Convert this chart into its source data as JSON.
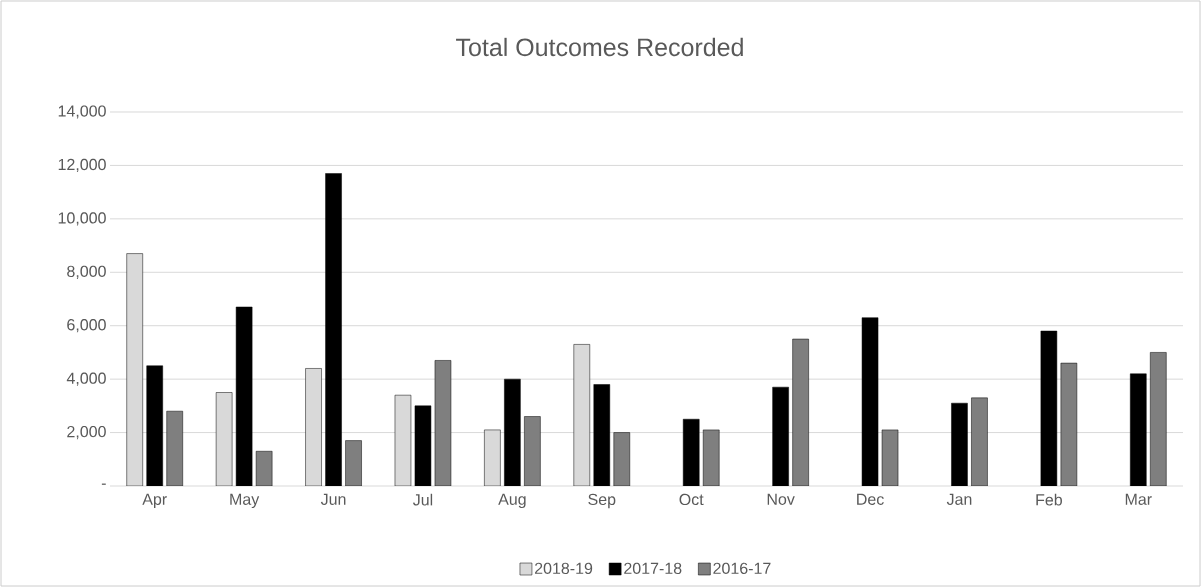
{
  "chart_data": {
    "type": "bar",
    "title": "Total Outcomes Recorded",
    "categories": [
      "Apr",
      "May",
      "Jun",
      "Jul",
      "Aug",
      "Sep",
      "Oct",
      "Nov",
      "Dec",
      "Jan",
      "Feb",
      "Mar"
    ],
    "series": [
      {
        "name": "2018-19",
        "color": "#d9d9d9",
        "values": [
          8700,
          3500,
          4400,
          3400,
          2100,
          5300,
          null,
          null,
          null,
          null,
          null,
          null
        ]
      },
      {
        "name": "2017-18",
        "color": "#000000",
        "values": [
          4500,
          6700,
          11700,
          3000,
          4000,
          3800,
          2500,
          3700,
          6300,
          3100,
          5800,
          4200
        ]
      },
      {
        "name": "2016-17",
        "color": "#7f7f7f",
        "values": [
          2800,
          1300,
          1700,
          4700,
          2600,
          2000,
          2100,
          5500,
          2100,
          3300,
          4600,
          5000
        ]
      }
    ],
    "ylim": [
      0,
      14000
    ],
    "yticks": [
      {
        "value": 0,
        "label": "-"
      },
      {
        "value": 2000,
        "label": "2,000"
      },
      {
        "value": 4000,
        "label": "4,000"
      },
      {
        "value": 6000,
        "label": "6,000"
      },
      {
        "value": 8000,
        "label": "8,000"
      },
      {
        "value": 10000,
        "label": "10,000"
      },
      {
        "value": 12000,
        "label": "12,000"
      },
      {
        "value": 14000,
        "label": "14,000"
      }
    ],
    "grid": "y",
    "legend": "bottom"
  }
}
